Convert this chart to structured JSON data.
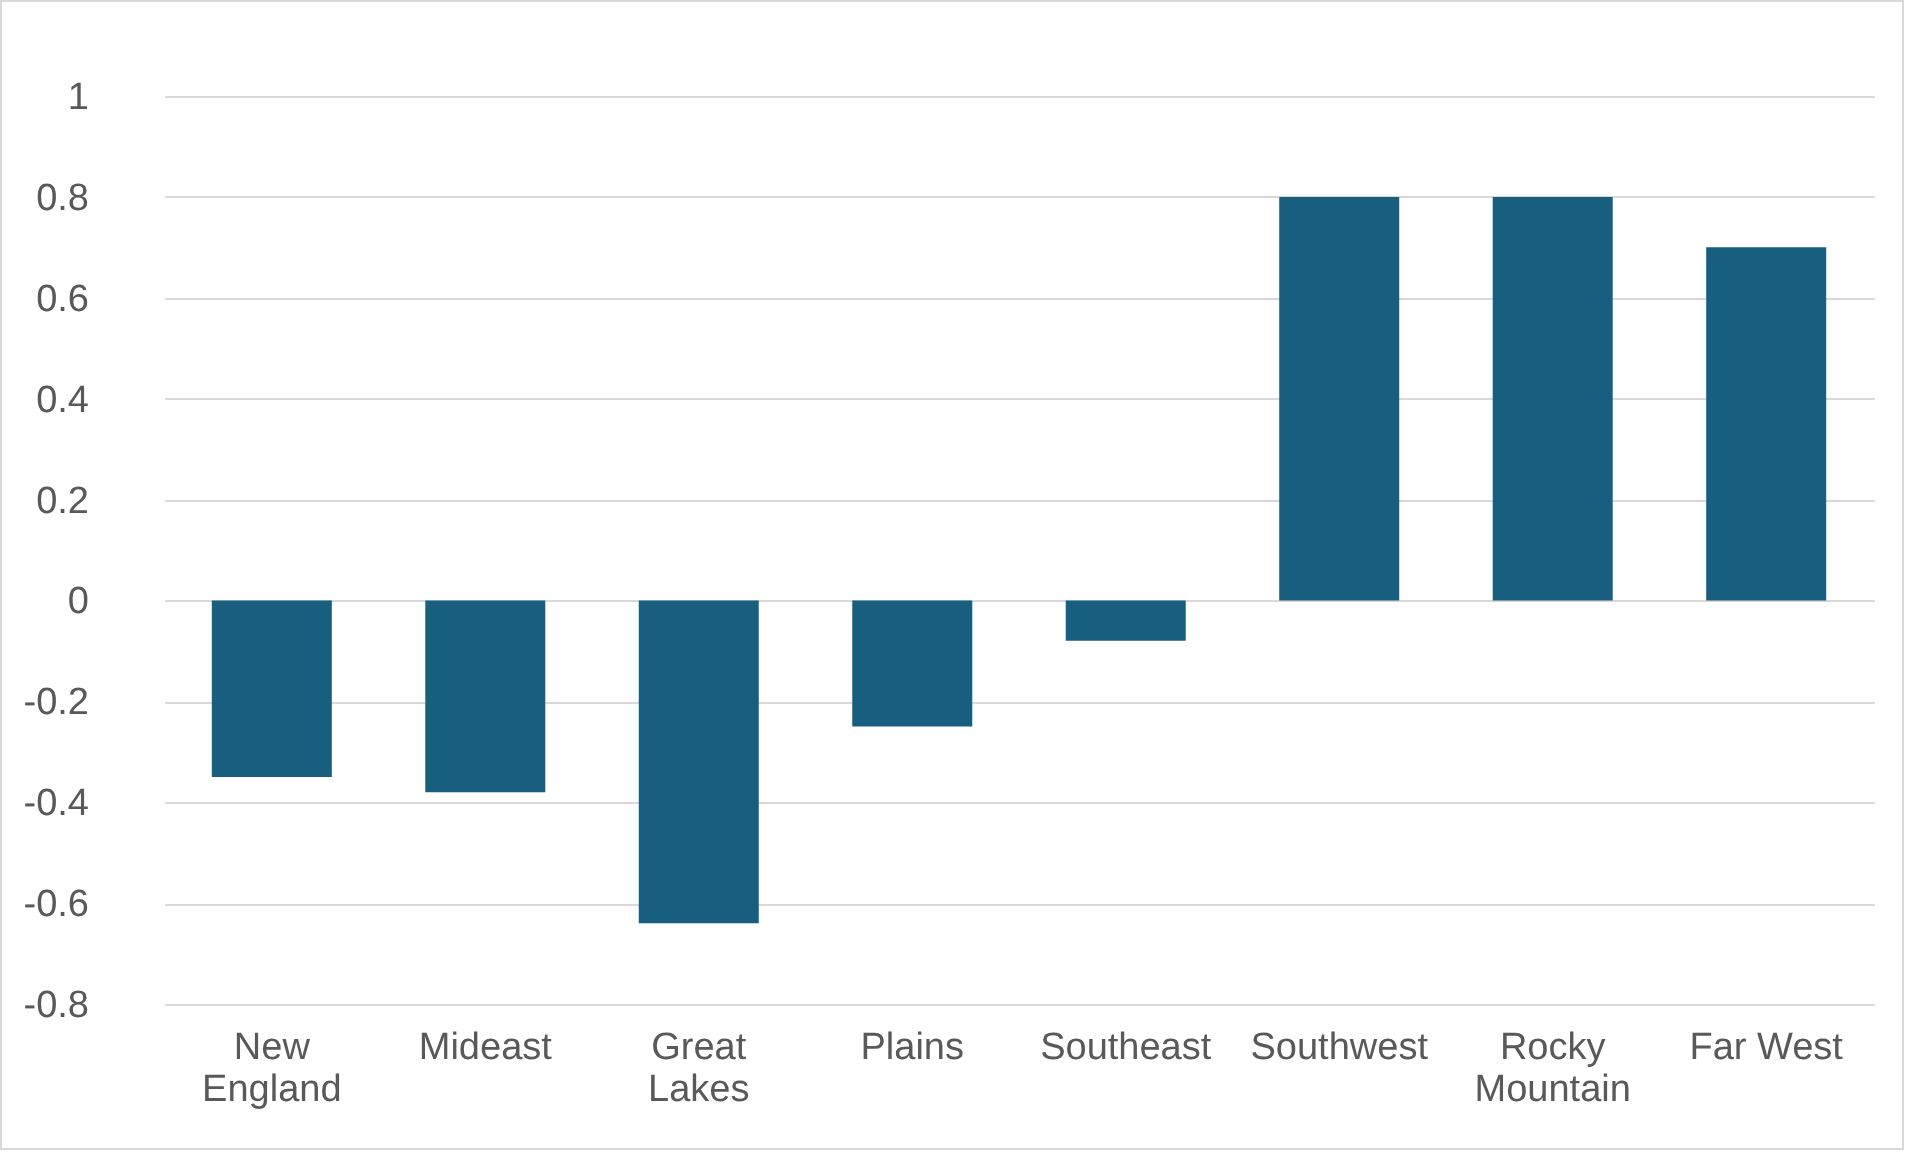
{
  "chart_data": {
    "type": "bar",
    "categories": [
      "New England",
      "Mideast",
      "Great Lakes",
      "Plains",
      "Southeast",
      "Southwest",
      "Rocky Mountain",
      "Far West"
    ],
    "values": [
      -0.35,
      -0.38,
      -0.64,
      -0.25,
      -0.08,
      0.8,
      0.8,
      0.7
    ],
    "color": "#175e7f",
    "ylim": [
      -0.8,
      1
    ],
    "yticks": [
      -0.8,
      -0.6,
      -0.4,
      -0.2,
      0,
      0.2,
      0.4,
      0.6,
      0.8,
      1
    ],
    "grid": "y"
  }
}
